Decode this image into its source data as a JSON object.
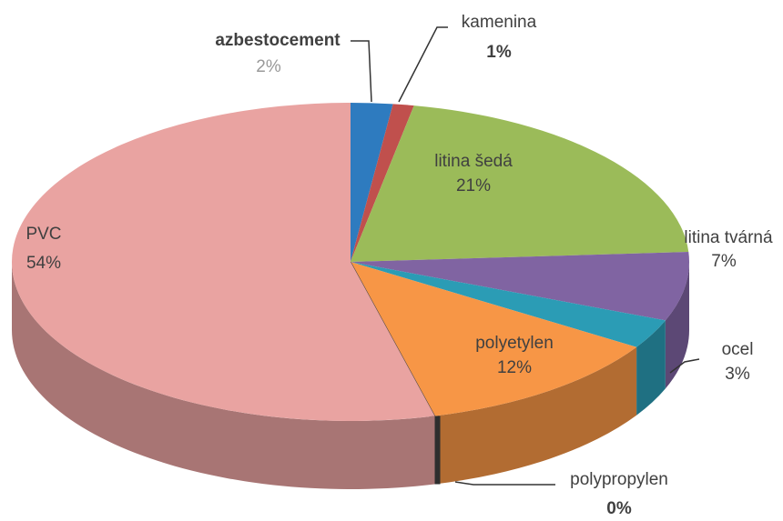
{
  "chart_data": {
    "type": "pie",
    "categories": [
      "azbestocement",
      "kamenina",
      "litina šedá",
      "litina tvárná",
      "ocel",
      "polyetylen",
      "polypropylen",
      "PVC"
    ],
    "values": [
      2,
      1,
      21,
      7,
      3,
      12,
      0,
      54
    ],
    "value_labels": [
      "2%",
      "1%",
      "21%",
      "7%",
      "3%",
      "12%",
      "0%",
      "54%"
    ],
    "colors": [
      "#2e7bbf",
      "#c0504d",
      "#9bbb59",
      "#8064a2",
      "#2b9cb5",
      "#f79646",
      "#404040",
      "#e9a3a1"
    ]
  }
}
